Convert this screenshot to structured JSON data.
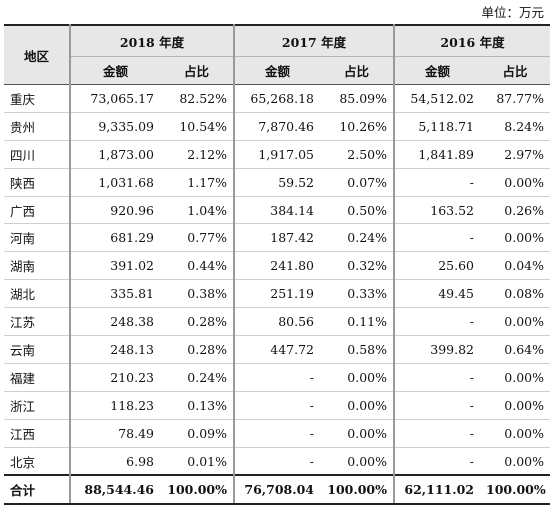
{
  "unit_label": "单位：万元",
  "header": {
    "region": "地区",
    "years": [
      "2018 年度",
      "2017 年度",
      "2016 年度"
    ],
    "amount": "金额",
    "share": "占比"
  },
  "rows": [
    {
      "region": "重庆",
      "v": [
        "73,065.17",
        "82.52%",
        "65,268.18",
        "85.09%",
        "54,512.02",
        "87.77%"
      ]
    },
    {
      "region": "贵州",
      "v": [
        "9,335.09",
        "10.54%",
        "7,870.46",
        "10.26%",
        "5,118.71",
        "8.24%"
      ]
    },
    {
      "region": "四川",
      "v": [
        "1,873.00",
        "2.12%",
        "1,917.05",
        "2.50%",
        "1,841.89",
        "2.97%"
      ]
    },
    {
      "region": "陕西",
      "v": [
        "1,031.68",
        "1.17%",
        "59.52",
        "0.07%",
        "-",
        "0.00%"
      ]
    },
    {
      "region": "广西",
      "v": [
        "920.96",
        "1.04%",
        "384.14",
        "0.50%",
        "163.52",
        "0.26%"
      ]
    },
    {
      "region": "河南",
      "v": [
        "681.29",
        "0.77%",
        "187.42",
        "0.24%",
        "-",
        "0.00%"
      ]
    },
    {
      "region": "湖南",
      "v": [
        "391.02",
        "0.44%",
        "241.80",
        "0.32%",
        "25.60",
        "0.04%"
      ]
    },
    {
      "region": "湖北",
      "v": [
        "335.81",
        "0.38%",
        "251.19",
        "0.33%",
        "49.45",
        "0.08%"
      ]
    },
    {
      "region": "江苏",
      "v": [
        "248.38",
        "0.28%",
        "80.56",
        "0.11%",
        "-",
        "0.00%"
      ]
    },
    {
      "region": "云南",
      "v": [
        "248.13",
        "0.28%",
        "447.72",
        "0.58%",
        "399.82",
        "0.64%"
      ]
    },
    {
      "region": "福建",
      "v": [
        "210.23",
        "0.24%",
        "-",
        "0.00%",
        "-",
        "0.00%"
      ]
    },
    {
      "region": "浙江",
      "v": [
        "118.23",
        "0.13%",
        "-",
        "0.00%",
        "-",
        "0.00%"
      ]
    },
    {
      "region": "江西",
      "v": [
        "78.49",
        "0.09%",
        "-",
        "0.00%",
        "-",
        "0.00%"
      ]
    },
    {
      "region": "北京",
      "v": [
        "6.98",
        "0.01%",
        "-",
        "0.00%",
        "-",
        "0.00%"
      ]
    }
  ],
  "total": {
    "label": "合计",
    "v": [
      "88,544.46",
      "100.00%",
      "76,708.04",
      "100.00%",
      "62,111.02",
      "100.00%"
    ]
  }
}
